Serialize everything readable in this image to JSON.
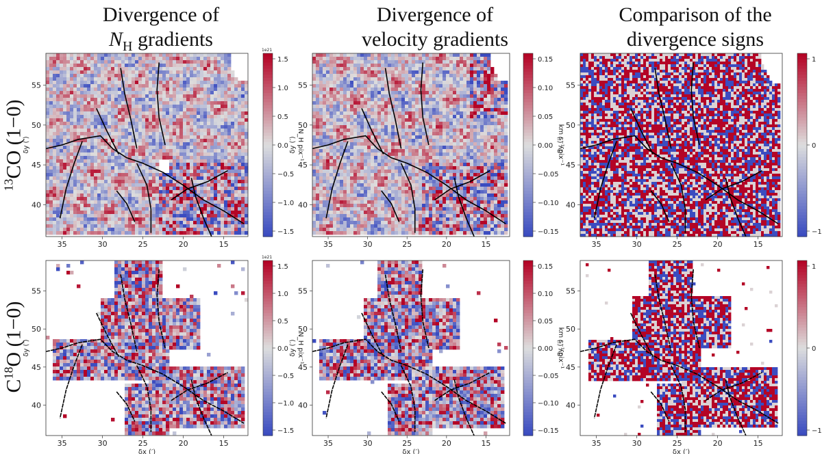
{
  "columns": [
    {
      "line1": "Divergence of",
      "line2_italic": "N",
      "line2_sub": "H",
      "line2_rest": " gradients"
    },
    {
      "line1": "Divergence of",
      "line2": "velocity gradients"
    },
    {
      "line1": "Comparison of the",
      "line2": "divergence signs"
    }
  ],
  "rows": [
    {
      "sup": "13",
      "main": "CO (1−0)"
    },
    {
      "main_pre": "C",
      "sup": "18",
      "main": "O (1−0)"
    }
  ],
  "axes": {
    "xlabel": "δx (′)",
    "ylabel": "δy (′)",
    "x_ticks": [
      "35",
      "30",
      "25",
      "20",
      "15"
    ],
    "y_ticks_top": [
      "40",
      "45",
      "50",
      "55"
    ],
    "y_ticks_bottom": [
      "40",
      "45",
      "50",
      "55"
    ]
  },
  "colorbars": {
    "nh": {
      "ticks": [
        "1.5",
        "1.0",
        "0.5",
        "0.0",
        "−0.5",
        "−1.0",
        "−1.5"
      ],
      "exponent": "1e21",
      "label": "N_H pix⁻¹",
      "range": [
        -1.7,
        1.7
      ]
    },
    "vel": {
      "ticks": [
        "0.15",
        "0.10",
        "0.05",
        "0.00",
        "−0.05",
        "−0.10",
        "−0.15"
      ],
      "label": "km s⁻¹ pix⁻¹",
      "range": [
        -0.15,
        0.15
      ]
    },
    "sign": {
      "ticks": [
        "1",
        "0",
        "−1"
      ],
      "range": [
        -1,
        1
      ]
    }
  },
  "colormap": {
    "low": "#3b4cc0",
    "mid": "#dddddd",
    "high": "#b40426"
  }
}
